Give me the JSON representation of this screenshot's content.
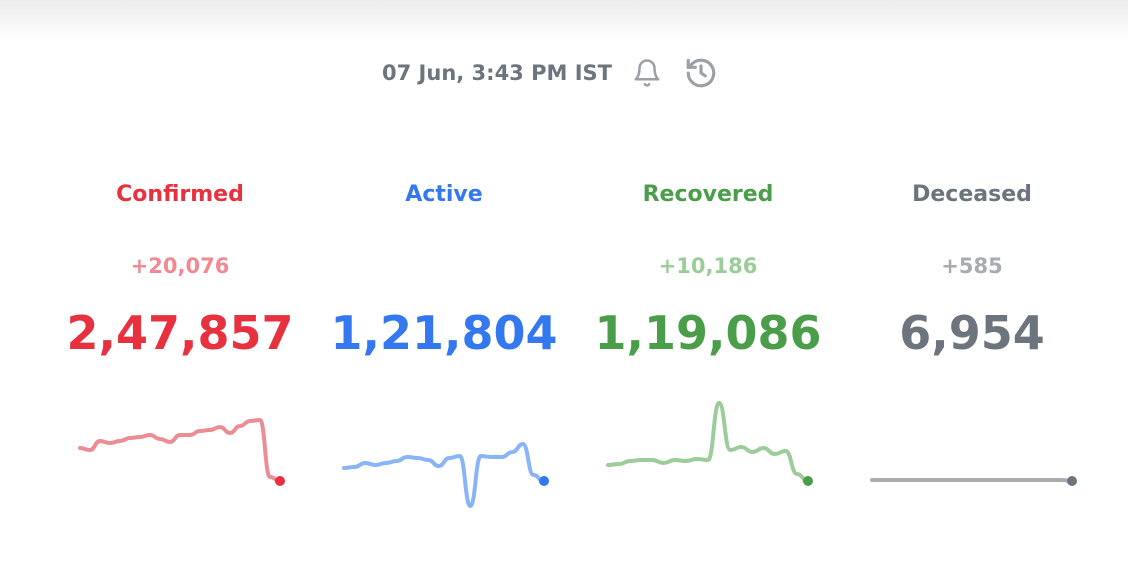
{
  "header": {
    "timestamp": "07 Jun, 3:43 PM IST",
    "icons": [
      "bell-icon",
      "history-icon"
    ]
  },
  "stats": [
    {
      "key": "confirmed",
      "label": "Confirmed",
      "delta": "+20,076",
      "total": "2,47,857",
      "color": "#e8313f",
      "light": "#ec8d93",
      "delta_color": "#ef8a92",
      "trend": [
        42,
        40,
        49,
        47,
        49,
        52,
        53,
        55,
        51,
        48,
        55,
        55,
        59,
        60,
        63,
        57,
        64,
        69,
        70,
        13,
        9
      ]
    },
    {
      "key": "active",
      "label": "Active",
      "delta": "",
      "total": "1,21,804",
      "color": "#3478f0",
      "light": "#8ab4f8",
      "delta_color": "#8ab4f8",
      "trend": [
        22,
        23,
        27,
        25,
        27,
        29,
        33,
        32,
        30,
        24,
        32,
        34,
        -16,
        34,
        33,
        33,
        38,
        46,
        15,
        9
      ]
    },
    {
      "key": "recovered",
      "label": "Recovered",
      "delta": "+10,186",
      "total": "1,19,086",
      "color": "#4a9e4a",
      "light": "#9ccc99",
      "delta_color": "#9ccc99",
      "trend": [
        25,
        26,
        29,
        30,
        30,
        27,
        30,
        29,
        31,
        30,
        87,
        40,
        43,
        38,
        42,
        36,
        39,
        16,
        9
      ]
    },
    {
      "key": "deceased",
      "label": "Deceased",
      "delta": "+585",
      "total": "6,954",
      "color": "#6c757d",
      "light": "#a8abb0",
      "delta_color": "#a8abb0",
      "trend": [
        10,
        10,
        10,
        10,
        10,
        10,
        10,
        10,
        10,
        10,
        10,
        10,
        10,
        10,
        10,
        10,
        10,
        10,
        10,
        9
      ]
    }
  ],
  "trend_domain": [
    -20,
    100
  ]
}
